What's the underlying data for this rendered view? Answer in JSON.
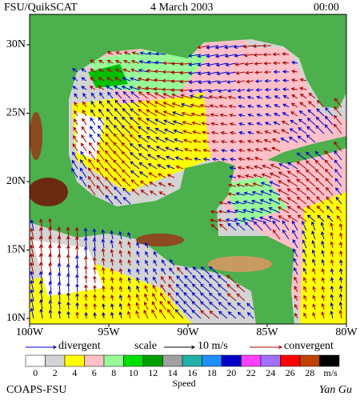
{
  "header": {
    "source": "FSU/QuikSCAT",
    "date": "4 March 2003",
    "time": "00:00"
  },
  "map": {
    "lat_ticks": [
      {
        "value": 30,
        "label": "30N"
      },
      {
        "value": 25,
        "label": "25N"
      },
      {
        "value": 20,
        "label": "20N"
      },
      {
        "value": 15,
        "label": "15N"
      },
      {
        "value": 10,
        "label": "10N"
      }
    ],
    "lon_ticks": [
      {
        "value": -100,
        "label": "100W"
      },
      {
        "value": -95,
        "label": "95W"
      },
      {
        "value": -90,
        "label": "90W"
      },
      {
        "value": -85,
        "label": "85W"
      },
      {
        "value": -80,
        "label": "80W"
      }
    ]
  },
  "legend": {
    "divergent": "divergent",
    "scale": "scale",
    "scale_value": "10 m/s",
    "convergent": "convergent",
    "divergent_color": "#0000cc",
    "convergent_color": "#aa0000"
  },
  "colorbar": {
    "labels": [
      0,
      2,
      4,
      6,
      8,
      10,
      12,
      14,
      16,
      18,
      20,
      22,
      24,
      26,
      28
    ],
    "unit": "m/s",
    "title": "Speed",
    "colors": [
      "#ffffff",
      "#d3d3d3",
      "#ffff00",
      "#ffc0c8",
      "#98fb98",
      "#00e000",
      "#00a000",
      "#a0a0a0",
      "#20b0a8",
      "#1e90ff",
      "#0000c8",
      "#ff40ff",
      "#a070ff",
      "#ff0000",
      "#c04000",
      "#000000"
    ]
  },
  "footer": {
    "credit": "COAPS-FSU",
    "author": "Yan Gu"
  }
}
